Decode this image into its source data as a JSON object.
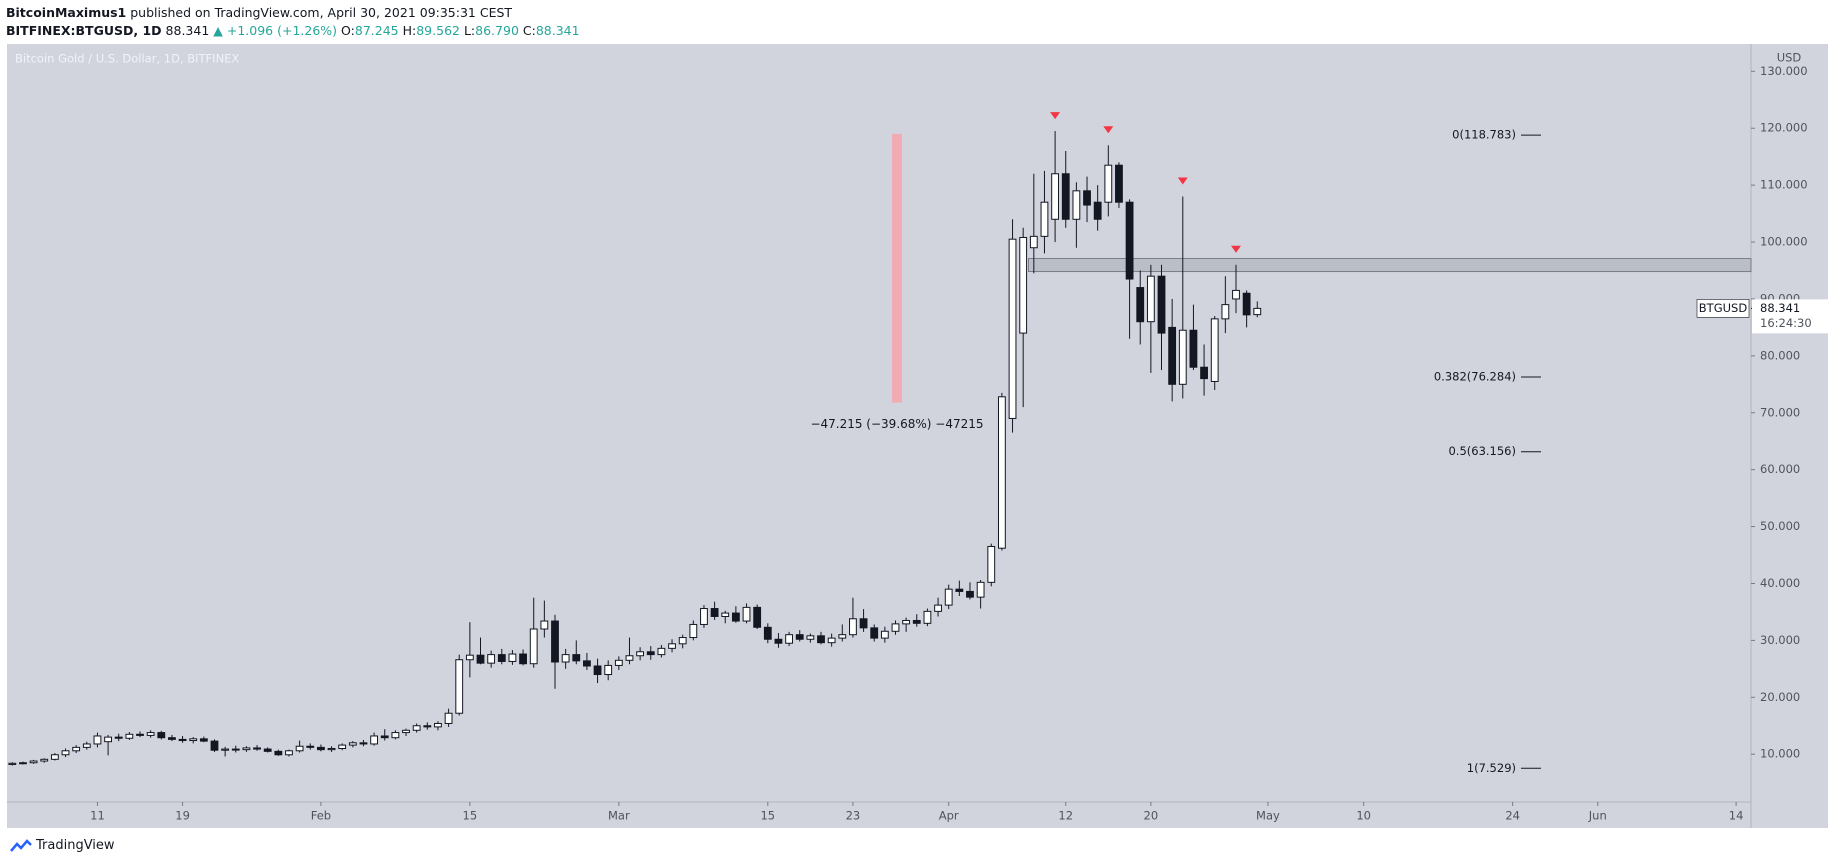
{
  "header": {
    "author": "BitcoinMaximus1",
    "published": "published on TradingView.com, April 30, 2021 09:35:31 CEST",
    "symbol": "BITFINEX:BTGUSD, 1D",
    "last": "88.341",
    "change": "▲ +1.096 (+1.26%)",
    "ohlc": [
      {
        "label": "O:",
        "value": "87.245"
      },
      {
        "label": "H:",
        "value": "89.562"
      },
      {
        "label": "L:",
        "value": "86.790"
      },
      {
        "label": "C:",
        "value": "88.341"
      }
    ]
  },
  "footer": {
    "brand": "TradingView"
  },
  "chart_data": {
    "type": "candlestick",
    "title": "Bitcoin Gold / U.S. Dollar, 1D, BITFINEX",
    "currency": "USD",
    "up_color": "#ffffff",
    "down_color": "#131722",
    "background": "#d1d4dc",
    "xlim": [
      -0.5,
      163.4
    ],
    "ylim": [
      1.6,
      134.8
    ],
    "xticks": [
      {
        "value": 8,
        "label": "11"
      },
      {
        "value": 16,
        "label": "19"
      },
      {
        "value": 29,
        "label": "Feb"
      },
      {
        "value": 43,
        "label": "15"
      },
      {
        "value": 57,
        "label": "Mar"
      },
      {
        "value": 71,
        "label": "15"
      },
      {
        "value": 79,
        "label": "23"
      },
      {
        "value": 88,
        "label": "Apr"
      },
      {
        "value": 99,
        "label": "12"
      },
      {
        "value": 107,
        "label": "20"
      },
      {
        "value": 118,
        "label": "May"
      },
      {
        "value": 127,
        "label": "10"
      },
      {
        "value": 141,
        "label": "24"
      },
      {
        "value": 149,
        "label": "Jun"
      },
      {
        "value": 162,
        "label": "14"
      }
    ],
    "yticks": [
      {
        "value": 10,
        "label": "10.000"
      },
      {
        "value": 20,
        "label": "20.000"
      },
      {
        "value": 30,
        "label": "30.000"
      },
      {
        "value": 40,
        "label": "40.000"
      },
      {
        "value": 50,
        "label": "50.000"
      },
      {
        "value": 60,
        "label": "60.000"
      },
      {
        "value": 70,
        "label": "70.000"
      },
      {
        "value": 80,
        "label": "80.000"
      },
      {
        "value": 90,
        "label": "90.000"
      },
      {
        "value": 100,
        "label": "100.000"
      },
      {
        "value": 110,
        "label": "110.000"
      },
      {
        "value": 120,
        "label": "120.000"
      },
      {
        "value": 130,
        "label": "130.000"
      }
    ],
    "candles": [
      [
        8.2,
        8.6,
        8.0,
        8.4
      ],
      [
        8.4,
        8.7,
        8.2,
        8.5
      ],
      [
        8.5,
        9.0,
        8.3,
        8.8
      ],
      [
        8.8,
        9.3,
        8.5,
        9.1
      ],
      [
        9.1,
        10.2,
        8.9,
        9.9
      ],
      [
        9.9,
        11.0,
        9.5,
        10.6
      ],
      [
        10.6,
        11.6,
        10.2,
        11.2
      ],
      [
        11.2,
        12.2,
        10.8,
        11.8
      ],
      [
        11.8,
        13.8,
        11.2,
        13.2
      ],
      [
        12.2,
        13.4,
        9.8,
        13.0
      ],
      [
        13.0,
        13.6,
        12.3,
        12.8
      ],
      [
        12.8,
        13.9,
        12.5,
        13.5
      ],
      [
        13.5,
        14.0,
        13.0,
        13.3
      ],
      [
        13.3,
        14.2,
        12.9,
        13.8
      ],
      [
        13.8,
        14.1,
        12.6,
        12.9
      ],
      [
        12.9,
        13.4,
        12.3,
        12.6
      ],
      [
        12.6,
        13.2,
        12.0,
        12.4
      ],
      [
        12.4,
        13.0,
        11.9,
        12.7
      ],
      [
        12.7,
        13.1,
        12.1,
        12.3
      ],
      [
        12.3,
        12.6,
        10.4,
        10.7
      ],
      [
        10.7,
        11.3,
        9.6,
        10.9
      ],
      [
        10.9,
        11.5,
        10.3,
        10.8
      ],
      [
        10.8,
        11.4,
        10.4,
        11.1
      ],
      [
        11.1,
        11.6,
        10.6,
        10.9
      ],
      [
        10.9,
        11.2,
        10.3,
        10.5
      ],
      [
        10.5,
        10.8,
        9.7,
        9.9
      ],
      [
        9.9,
        10.8,
        9.6,
        10.6
      ],
      [
        10.6,
        12.4,
        10.3,
        11.4
      ],
      [
        11.4,
        11.9,
        10.8,
        11.2
      ],
      [
        11.2,
        11.7,
        10.5,
        10.8
      ],
      [
        10.8,
        11.4,
        10.4,
        11.0
      ],
      [
        11.0,
        11.9,
        10.7,
        11.6
      ],
      [
        11.6,
        12.3,
        11.2,
        12.0
      ],
      [
        12.0,
        12.5,
        11.4,
        11.8
      ],
      [
        11.8,
        13.8,
        11.5,
        13.2
      ],
      [
        13.2,
        14.4,
        12.4,
        12.9
      ],
      [
        12.9,
        14.2,
        12.6,
        13.8
      ],
      [
        13.8,
        14.5,
        13.2,
        14.2
      ],
      [
        14.2,
        15.4,
        13.8,
        15.0
      ],
      [
        15.0,
        15.6,
        14.3,
        14.8
      ],
      [
        14.8,
        15.8,
        14.2,
        15.4
      ],
      [
        15.4,
        18.0,
        14.8,
        17.2
      ],
      [
        17.2,
        27.5,
        16.8,
        26.6
      ],
      [
        26.6,
        33.2,
        23.5,
        27.4
      ],
      [
        27.4,
        30.5,
        25.8,
        26.0
      ],
      [
        26.0,
        28.2,
        25.2,
        27.5
      ],
      [
        27.5,
        28.5,
        25.8,
        26.3
      ],
      [
        26.3,
        28.3,
        25.7,
        27.6
      ],
      [
        27.6,
        28.4,
        25.6,
        25.9
      ],
      [
        25.9,
        37.5,
        25.2,
        32.0
      ],
      [
        32.0,
        37.0,
        30.5,
        33.4
      ],
      [
        33.4,
        34.5,
        21.5,
        26.2
      ],
      [
        26.2,
        28.5,
        25.0,
        27.5
      ],
      [
        27.5,
        30.0,
        25.8,
        26.4
      ],
      [
        26.4,
        27.8,
        24.8,
        25.5
      ],
      [
        25.5,
        26.8,
        22.5,
        24.0
      ],
      [
        24.0,
        26.5,
        23.0,
        25.6
      ],
      [
        25.6,
        27.2,
        24.8,
        26.5
      ],
      [
        26.5,
        30.5,
        25.8,
        27.3
      ],
      [
        27.3,
        28.8,
        26.5,
        28.0
      ],
      [
        28.0,
        29.0,
        26.6,
        27.5
      ],
      [
        27.5,
        29.2,
        27.0,
        28.6
      ],
      [
        28.6,
        30.2,
        27.9,
        29.4
      ],
      [
        29.4,
        31.0,
        28.6,
        30.5
      ],
      [
        30.5,
        33.5,
        30.0,
        32.8
      ],
      [
        32.8,
        36.2,
        32.2,
        35.6
      ],
      [
        35.6,
        36.8,
        33.6,
        34.2
      ],
      [
        34.2,
        35.2,
        33.0,
        34.8
      ],
      [
        34.8,
        36.0,
        33.1,
        33.4
      ],
      [
        33.4,
        36.5,
        33.0,
        35.8
      ],
      [
        35.8,
        36.3,
        32.0,
        32.3
      ],
      [
        32.3,
        33.0,
        29.5,
        30.2
      ],
      [
        30.2,
        31.3,
        28.7,
        29.5
      ],
      [
        29.5,
        31.5,
        29.0,
        31.0
      ],
      [
        31.0,
        31.8,
        29.8,
        30.2
      ],
      [
        30.2,
        31.2,
        29.6,
        30.8
      ],
      [
        30.8,
        31.5,
        29.3,
        29.6
      ],
      [
        29.6,
        31.2,
        28.9,
        30.4
      ],
      [
        30.4,
        32.8,
        29.8,
        31.0
      ],
      [
        31.0,
        37.5,
        30.5,
        33.8
      ],
      [
        33.8,
        35.5,
        31.5,
        32.2
      ],
      [
        32.2,
        32.8,
        29.8,
        30.4
      ],
      [
        30.4,
        32.4,
        29.6,
        31.6
      ],
      [
        31.6,
        33.5,
        31.0,
        32.9
      ],
      [
        32.9,
        34.0,
        31.5,
        33.5
      ],
      [
        33.5,
        34.6,
        32.4,
        33.0
      ],
      [
        33.0,
        35.6,
        32.5,
        35.1
      ],
      [
        35.1,
        37.5,
        34.2,
        36.2
      ],
      [
        36.2,
        39.8,
        35.5,
        39.0
      ],
      [
        39.0,
        40.5,
        37.8,
        38.6
      ],
      [
        38.6,
        40.2,
        37.2,
        37.6
      ],
      [
        37.6,
        40.6,
        35.6,
        40.2
      ],
      [
        40.2,
        47.0,
        39.5,
        46.5
      ],
      [
        46.2,
        73.5,
        45.8,
        72.8
      ],
      [
        69.0,
        104.0,
        66.5,
        100.5
      ],
      [
        84.0,
        102.5,
        71.0,
        100.8
      ],
      [
        99.0,
        112.0,
        94.5,
        101.0
      ],
      [
        101.0,
        112.5,
        98.0,
        107.0
      ],
      [
        104.0,
        119.5,
        100.0,
        112.0
      ],
      [
        112.0,
        116.0,
        102.5,
        104.0
      ],
      [
        104.0,
        110.5,
        99.0,
        109.0
      ],
      [
        109.0,
        111.5,
        103.5,
        106.5
      ],
      [
        107.0,
        110.0,
        102.0,
        104.0
      ],
      [
        107.0,
        117.0,
        104.5,
        113.5
      ],
      [
        113.5,
        114.0,
        106.0,
        107.0
      ],
      [
        107.0,
        107.5,
        83.0,
        93.5
      ],
      [
        92.0,
        95.0,
        82.0,
        86.0
      ],
      [
        86.0,
        96.0,
        77.0,
        94.0
      ],
      [
        94.0,
        96.0,
        77.5,
        84.0
      ],
      [
        85.0,
        90.0,
        72.0,
        75.0
      ],
      [
        75.0,
        108.0,
        72.5,
        84.5
      ],
      [
        84.5,
        89.0,
        77.5,
        78.0
      ],
      [
        78.0,
        82.0,
        73.0,
        76.0
      ],
      [
        75.5,
        87.0,
        74.0,
        86.5
      ],
      [
        86.5,
        94.0,
        84.0,
        89.0
      ],
      [
        90.0,
        96.0,
        87.5,
        91.5
      ],
      [
        91.0,
        91.5,
        85.0,
        87.2
      ],
      [
        87.245,
        89.562,
        86.79,
        88.341
      ]
    ],
    "markers": {
      "color": "#f23645",
      "candles": [
        98,
        103,
        110,
        115
      ]
    },
    "zone": {
      "top": 97.1,
      "bottom": 94.8,
      "from": 96
    },
    "fib_levels": [
      {
        "value": 118.783,
        "label": "0(118.783)"
      },
      {
        "value": 76.284,
        "label": "0.382(76.284)"
      },
      {
        "value": 63.156,
        "label": "0.5(63.156)"
      },
      {
        "value": 7.529,
        "label": "1(7.529)"
      }
    ],
    "measure": {
      "start": 119.0,
      "end": 71.785,
      "label": "−47.215 (−39.68%) −47215",
      "color": "#f7a1a8"
    },
    "last_price": {
      "symbol": "BTGUSD",
      "value": 88.341,
      "countdown": "16:24:30"
    }
  }
}
